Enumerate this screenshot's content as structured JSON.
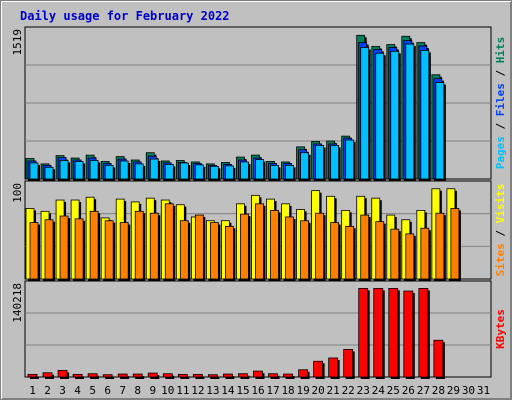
{
  "title": "Daily usage for February 2022",
  "colors": {
    "background": "#c0c0c0",
    "plot_background": "#c0c0c0",
    "hits": "#00ffff",
    "files": "#0080ff",
    "pages": "#00c0ff",
    "hits_back": "#00805c",
    "files_back": "#0040ff",
    "visits": "#ffff00",
    "sites": "#ff8000",
    "kbytes": "#ff0000",
    "weekend_label": "#00805c",
    "weekday_label": "#000000",
    "title": "#0000cc"
  },
  "chart_data": [
    {
      "type": "bar",
      "panel": "hits-files-pages",
      "legend": [
        "Pages",
        "Files",
        "Hits"
      ],
      "legend_colors": [
        "#00c0ff",
        "#0040ff",
        "#00805c"
      ],
      "legend_separator": " / ",
      "ymax_label": "1519",
      "ylim": [
        0,
        1519
      ],
      "categories": [
        "1",
        "2",
        "3",
        "4",
        "5",
        "6",
        "7",
        "8",
        "9",
        "10",
        "11",
        "12",
        "13",
        "14",
        "15",
        "16",
        "17",
        "18",
        "19",
        "20",
        "21",
        "22",
        "23",
        "24",
        "25",
        "26",
        "27",
        "28",
        "29",
        "30",
        "31"
      ],
      "series": [
        {
          "name": "Hits",
          "values": [
            210,
            155,
            240,
            215,
            245,
            180,
            230,
            195,
            270,
            185,
            190,
            175,
            155,
            170,
            225,
            245,
            180,
            175,
            330,
            385,
            390,
            440,
            1475,
            1360,
            1380,
            1465,
            1400,
            1070,
            0,
            0,
            0
          ]
        },
        {
          "name": "Files",
          "values": [
            185,
            140,
            220,
            195,
            215,
            160,
            205,
            175,
            235,
            165,
            170,
            160,
            140,
            150,
            195,
            215,
            160,
            160,
            300,
            360,
            360,
            420,
            1400,
            1330,
            1350,
            1420,
            1365,
            1030,
            0,
            0,
            0
          ]
        },
        {
          "name": "Pages",
          "values": [
            165,
            120,
            190,
            180,
            190,
            140,
            185,
            155,
            205,
            150,
            165,
            145,
            130,
            135,
            175,
            200,
            140,
            140,
            270,
            345,
            345,
            400,
            1350,
            1290,
            1310,
            1385,
            1320,
            990,
            0,
            0,
            0
          ]
        }
      ]
    },
    {
      "type": "bar",
      "panel": "sites-visits",
      "legend": [
        "Sites",
        "Visits"
      ],
      "legend_colors": [
        "#ff8000",
        "#ffff00"
      ],
      "legend_separator": " / ",
      "ymax_label": "100",
      "ylim": [
        0,
        100
      ],
      "categories": [
        "1",
        "2",
        "3",
        "4",
        "5",
        "6",
        "7",
        "8",
        "9",
        "10",
        "11",
        "12",
        "13",
        "14",
        "15",
        "16",
        "17",
        "18",
        "19",
        "20",
        "21",
        "22",
        "23",
        "24",
        "25",
        "26",
        "27",
        "28",
        "29",
        "30",
        "31"
      ],
      "series": [
        {
          "name": "Visits",
          "values": [
            75,
            72,
            84,
            84,
            87,
            65,
            85,
            82,
            86,
            84,
            79,
            66,
            62,
            62,
            80,
            89,
            85,
            80,
            74,
            94,
            88,
            73,
            88,
            86,
            68,
            63,
            73,
            96,
            96,
            0,
            0
          ]
        },
        {
          "name": "Sites",
          "values": [
            60,
            63,
            67,
            64,
            72,
            62,
            60,
            72,
            70,
            80,
            62,
            68,
            60,
            56,
            69,
            80,
            73,
            66,
            62,
            70,
            60,
            56,
            68,
            61,
            53,
            48,
            54,
            70,
            75,
            0,
            0
          ]
        }
      ]
    },
    {
      "type": "bar",
      "panel": "kbytes",
      "legend": [
        "KBytes"
      ],
      "legend_colors": [
        "#ff0000"
      ],
      "ymax_label": "140218",
      "ylim": [
        0,
        140218
      ],
      "categories": [
        "1",
        "2",
        "3",
        "4",
        "5",
        "6",
        "7",
        "8",
        "9",
        "10",
        "11",
        "12",
        "13",
        "14",
        "15",
        "16",
        "17",
        "18",
        "19",
        "20",
        "21",
        "22",
        "23",
        "24",
        "25",
        "26",
        "27",
        "28",
        "29",
        "30",
        "31"
      ],
      "series": [
        {
          "name": "KBytes",
          "values": [
            4000,
            6500,
            10000,
            4000,
            5000,
            3500,
            4500,
            4500,
            6000,
            5000,
            4000,
            4000,
            3500,
            4500,
            5000,
            9000,
            5000,
            4500,
            11000,
            24000,
            29000,
            42000,
            135000,
            135000,
            135000,
            131000,
            135000,
            56000,
            0,
            0,
            0
          ]
        }
      ]
    }
  ],
  "x_labels": [
    {
      "label": "1",
      "weekend": false
    },
    {
      "label": "2",
      "weekend": false
    },
    {
      "label": "3",
      "weekend": false
    },
    {
      "label": "4",
      "weekend": false
    },
    {
      "label": "5",
      "weekend": true
    },
    {
      "label": "6",
      "weekend": true
    },
    {
      "label": "7",
      "weekend": false
    },
    {
      "label": "8",
      "weekend": false
    },
    {
      "label": "9",
      "weekend": false
    },
    {
      "label": "10",
      "weekend": false
    },
    {
      "label": "11",
      "weekend": false
    },
    {
      "label": "12",
      "weekend": true
    },
    {
      "label": "13",
      "weekend": true
    },
    {
      "label": "14",
      "weekend": false
    },
    {
      "label": "15",
      "weekend": false
    },
    {
      "label": "16",
      "weekend": false
    },
    {
      "label": "17",
      "weekend": false
    },
    {
      "label": "18",
      "weekend": false
    },
    {
      "label": "19",
      "weekend": true
    },
    {
      "label": "20",
      "weekend": true
    },
    {
      "label": "21",
      "weekend": false
    },
    {
      "label": "22",
      "weekend": false
    },
    {
      "label": "23",
      "weekend": false
    },
    {
      "label": "24",
      "weekend": false
    },
    {
      "label": "25",
      "weekend": false
    },
    {
      "label": "26",
      "weekend": true
    },
    {
      "label": "27",
      "weekend": true
    },
    {
      "label": "28",
      "weekend": false
    },
    {
      "label": "29",
      "weekend": false
    },
    {
      "label": "30",
      "weekend": false
    },
    {
      "label": "31",
      "weekend": false
    }
  ]
}
